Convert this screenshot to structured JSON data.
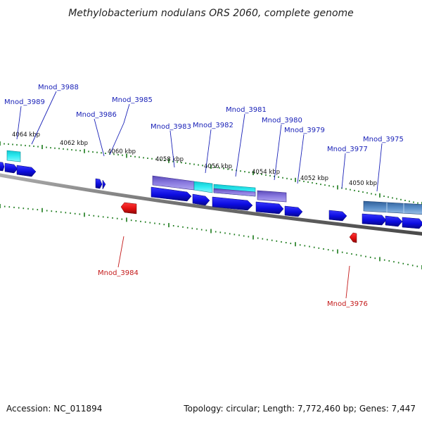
{
  "title": "Methylobacterium nodulans ORS 2060, complete genome",
  "footer": {
    "accession": "Accession: NC_011894",
    "topology": "Topology: circular; Length: 7,772,460 bp; Genes: 7,447"
  },
  "scale_labels": [
    "4064 kbp",
    "4062 kbp",
    "4060 kbp",
    "4058 kbp",
    "4056 kbp",
    "4054 kbp",
    "4052 kbp",
    "4050 kbp"
  ],
  "gene_labels": [
    {
      "text": "Mnod_3988",
      "strand": "forward"
    },
    {
      "text": "Mnod_3989",
      "strand": "forward"
    },
    {
      "text": "Mnod_3986",
      "strand": "forward"
    },
    {
      "text": "Mnod_3985",
      "strand": "forward"
    },
    {
      "text": "Mnod_3983",
      "strand": "forward"
    },
    {
      "text": "Mnod_3982",
      "strand": "forward"
    },
    {
      "text": "Mnod_3981",
      "strand": "forward"
    },
    {
      "text": "Mnod_3980",
      "strand": "forward"
    },
    {
      "text": "Mnod_3979",
      "strand": "forward"
    },
    {
      "text": "Mnod_3977",
      "strand": "forward"
    },
    {
      "text": "Mnod_3975",
      "strand": "forward"
    },
    {
      "text": "Mnod_3984",
      "strand": "reverse"
    },
    {
      "text": "Mnod_3976",
      "strand": "reverse"
    }
  ],
  "colors": {
    "forward_gene": "#1010e0",
    "reverse_gene": "#e01010",
    "backbone": "#808080",
    "ticks": "#1a7a1a",
    "feature_purple": "#7a6ad0",
    "feature_cyan": "#22e0e8",
    "feature_steel": "#4a7fb8"
  }
}
